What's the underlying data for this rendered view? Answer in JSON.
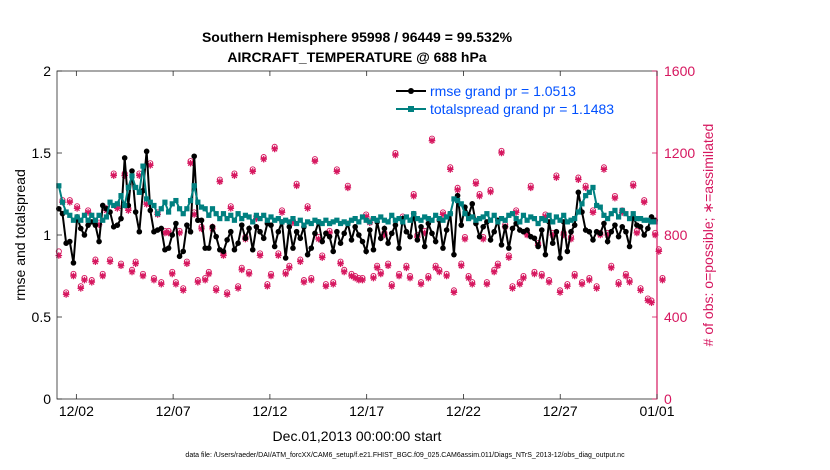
{
  "chart_data": {
    "type": "line",
    "title": "Southern Hemisphere 95998 / 96449 = 99.532%",
    "subtitle": "AIRCRAFT_TEMPERATURE @ 688 hPa",
    "xlabel": "Dec.01,2013 00:00:00 start",
    "ylabel": "rmse and totalspread",
    "y2label": "# of obs: o=possible; ∗=assimilated",
    "footnote": "data file: /Users/raeder/DAI/ATM_forcXX/CAM6_setup/f.e21.FHIST_BGC.f09_025.CAM6assim.011/Diags_NTrS_2013-12/obs_diag_output.nc",
    "xlim": [
      0.5,
      31.5
    ],
    "ylim": [
      0,
      2
    ],
    "y2lim": [
      0,
      1600
    ],
    "x_ticks": [
      1.5,
      6.5,
      11.5,
      16.5,
      21.5,
      26.5,
      31.5
    ],
    "x_tick_labels": [
      "12/02",
      "12/07",
      "12/12",
      "12/17",
      "12/22",
      "12/27",
      "01/01"
    ],
    "y_ticks": [
      0,
      0.5,
      1,
      1.5,
      2
    ],
    "y_tick_labels": [
      "0",
      "0.5",
      "1",
      "1.5",
      "2"
    ],
    "y2_ticks": [
      0,
      400,
      800,
      1200,
      1600
    ],
    "y2_tick_labels": [
      "0",
      "400",
      "800",
      "1200",
      "1600"
    ],
    "colors": {
      "rmse": "#000000",
      "spread": "#008080",
      "obs": "#d6175f",
      "legend_text": "#0050ff"
    },
    "series": [
      {
        "name": "rmse grand pr = 1.0513",
        "axis": "left",
        "values": [
          1.16,
          1.13,
          0.95,
          0.96,
          0.83,
          1.11,
          1.04,
          1.0,
          1.06,
          1.08,
          1.06,
          0.96,
          1.18,
          1.16,
          1.14,
          1.05,
          1.06,
          1.1,
          1.47,
          1.18,
          1.39,
          1.14,
          1.02,
          1.27,
          1.51,
          1.15,
          1.02,
          1.03,
          1.04,
          0.91,
          0.92,
          1.0,
          1.07,
          0.87,
          0.9,
          1.06,
          1.02,
          1.48,
          1.09,
          1.09,
          0.92,
          0.92,
          1.05,
          0.99,
          0.91,
          0.9,
          0.97,
          1.02,
          0.91,
          0.95,
          1.06,
          0.98,
          1.04,
          0.91,
          1.05,
          1.02,
          0.98,
          1.07,
          1.06,
          0.93,
          1.02,
          1.08,
          0.86,
          1.05,
          0.92,
          1.02,
          0.98,
          1.05,
          0.88,
          0.92,
          1.01,
          1.08,
          0.96,
          1.01,
          0.99,
          0.9,
          1.02,
          0.95,
          1.01,
          1.07,
          0.97,
          1.05,
          1.0,
          0.96,
          0.9,
          1.03,
          0.91,
          1.08,
          0.98,
          1.04,
          0.95,
          1.01,
          1.06,
          0.92,
          1.1,
          1.02,
          0.99,
          1.13,
          0.97,
          1.05,
          0.93,
          1.07,
          1.01,
          0.96,
          1.09,
          0.92,
          1.03,
          1.13,
          0.88,
          1.24,
          1.06,
          1.17,
          1.12,
          1.19,
          1.07,
          0.99,
          1.05,
          1.08,
          0.97,
          1.02,
          1.09,
          0.94,
          1.05,
          0.92,
          1.04,
          1.07,
          1.03,
          1.02,
          1.03,
          0.99,
          0.98,
          0.93,
          1.03,
          0.88,
          1.08,
          0.95,
          1.02,
          0.86,
          1.08,
          0.9,
          1.02,
          1.06,
          1.26,
          1.14,
          1.03,
          1.02,
          0.97,
          1.02,
          1.01,
          1.07,
          0.96,
          1.02,
          1.06,
          0.99,
          1.05,
          1.02,
          0.93,
          1.11,
          1.06,
          1.05,
          1.0,
          1.04,
          1.11,
          1.09
        ]
      },
      {
        "name": "totalspread grand pr = 1.1483",
        "axis": "left",
        "values": [
          1.3,
          1.2,
          1.14,
          1.12,
          1.09,
          1.11,
          1.09,
          1.12,
          1.09,
          1.12,
          1.09,
          1.12,
          1.09,
          1.11,
          1.2,
          1.18,
          1.19,
          1.24,
          1.18,
          1.29,
          1.36,
          1.29,
          1.26,
          1.42,
          1.22,
          1.2,
          1.18,
          1.13,
          1.16,
          1.2,
          1.14,
          1.19,
          1.21,
          1.16,
          1.13,
          1.16,
          1.21,
          1.3,
          1.2,
          1.17,
          1.16,
          1.12,
          1.16,
          1.13,
          1.1,
          1.13,
          1.1,
          1.12,
          1.09,
          1.13,
          1.1,
          1.12,
          1.11,
          1.08,
          1.12,
          1.1,
          1.12,
          1.09,
          1.11,
          1.09,
          1.1,
          1.08,
          1.09,
          1.08,
          1.1,
          1.07,
          1.09,
          1.06,
          1.08,
          1.07,
          1.09,
          1.08,
          1.07,
          1.09,
          1.07,
          1.08,
          1.09,
          1.07,
          1.08,
          1.07,
          1.09,
          1.1,
          1.08,
          1.11,
          1.09,
          1.08,
          1.1,
          1.09,
          1.11,
          1.09,
          1.08,
          1.12,
          1.09,
          1.1,
          1.08,
          1.11,
          1.09,
          1.13,
          1.1,
          1.09,
          1.11,
          1.1,
          1.09,
          1.12,
          1.1,
          1.09,
          1.11,
          1.13,
          1.22,
          1.21,
          1.19,
          1.13,
          1.1,
          1.11,
          1.09,
          1.1,
          1.11,
          1.13,
          1.09,
          1.12,
          1.08,
          1.1,
          1.09,
          1.12,
          1.13,
          1.1,
          1.08,
          1.12,
          1.09,
          1.11,
          1.1,
          1.07,
          1.1,
          1.09,
          1.12,
          1.08,
          1.11,
          1.09,
          1.12,
          1.08,
          1.09,
          1.1,
          1.14,
          1.19,
          1.24,
          1.26,
          1.29,
          1.18,
          1.17,
          1.12,
          1.1,
          1.13,
          1.15,
          1.11,
          1.15,
          1.13,
          1.1,
          1.13,
          1.1,
          1.1,
          1.09,
          1.09,
          1.08,
          1.08
        ]
      }
    ],
    "obs_count_assimilated": [
      700,
      960,
      510,
      960,
      600,
      930,
      540,
      580,
      910,
      570,
      670,
      850,
      600,
      920,
      670,
      1090,
      930,
      650,
      1090,
      920,
      620,
      660,
      1090,
      600,
      950,
      1140,
      580,
      900,
      560,
      810,
      810,
      610,
      560,
      810,
      530,
      660,
      1150,
      900,
      570,
      830,
      580,
      610,
      830,
      530,
      1060,
      700,
      510,
      930,
      1090,
      540,
      630,
      780,
      610,
      1110,
      880,
      700,
      1170,
      550,
      600,
      1220,
      700,
      910,
      610,
      640,
      860,
      1040,
      670,
      570,
      930,
      580,
      1160,
      780,
      690,
      550,
      810,
      560,
      1110,
      660,
      620,
      1030,
      600,
      590,
      580,
      580,
      890,
      860,
      590,
      640,
      610,
      800,
      650,
      550,
      1190,
      600,
      880,
      640,
      590,
      990,
      790,
      560,
      810,
      590,
      1260,
      640,
      620,
      900,
      600,
      1120,
      520,
      1020,
      650,
      780,
      590,
      560,
      1050,
      990,
      780,
      560,
      1010,
      620,
      650,
      1200,
      840,
      690,
      540,
      910,
      560,
      590,
      800,
      1030,
      610,
      750,
      600,
      890,
      570,
      800,
      1080,
      520,
      800,
      550,
      780,
      600,
      1070,
      560,
      1030,
      580,
      910,
      540,
      800,
      1120,
      800,
      640,
      980,
      560,
      910,
      600,
      570,
      1040,
      810,
      530,
      960,
      480,
      470,
      800,
      720,
      580
    ],
    "obs_count_possible": [
      720,
      970,
      520,
      970,
      610,
      940,
      550,
      590,
      920,
      580,
      680,
      860,
      610,
      930,
      680,
      1100,
      940,
      660,
      1100,
      930,
      630,
      670,
      1100,
      610,
      960,
      1150,
      590,
      910,
      570,
      820,
      820,
      620,
      570,
      820,
      540,
      670,
      1160,
      910,
      580,
      840,
      590,
      620,
      840,
      540,
      1070,
      710,
      520,
      940,
      1100,
      550,
      640,
      790,
      620,
      1120,
      890,
      710,
      1180,
      560,
      610,
      1230,
      710,
      920,
      620,
      650,
      870,
      1050,
      680,
      580,
      940,
      590,
      1170,
      790,
      700,
      560,
      820,
      570,
      1120,
      670,
      630,
      1040,
      610,
      600,
      590,
      590,
      900,
      870,
      600,
      650,
      620,
      810,
      660,
      560,
      1200,
      610,
      890,
      650,
      600,
      1000,
      800,
      570,
      820,
      600,
      1270,
      650,
      630,
      910,
      610,
      1130,
      530,
      1030,
      660,
      790,
      600,
      570,
      1060,
      1000,
      790,
      570,
      1020,
      630,
      660,
      1210,
      850,
      700,
      550,
      920,
      570,
      600,
      810,
      1040,
      620,
      760,
      610,
      900,
      580,
      810,
      1090,
      530,
      810,
      560,
      790,
      610,
      1080,
      570,
      1040,
      590,
      920,
      550,
      810,
      1130,
      810,
      650,
      990,
      570,
      920,
      610,
      580,
      1050,
      820,
      540,
      970,
      490,
      480,
      810,
      730,
      590
    ]
  }
}
